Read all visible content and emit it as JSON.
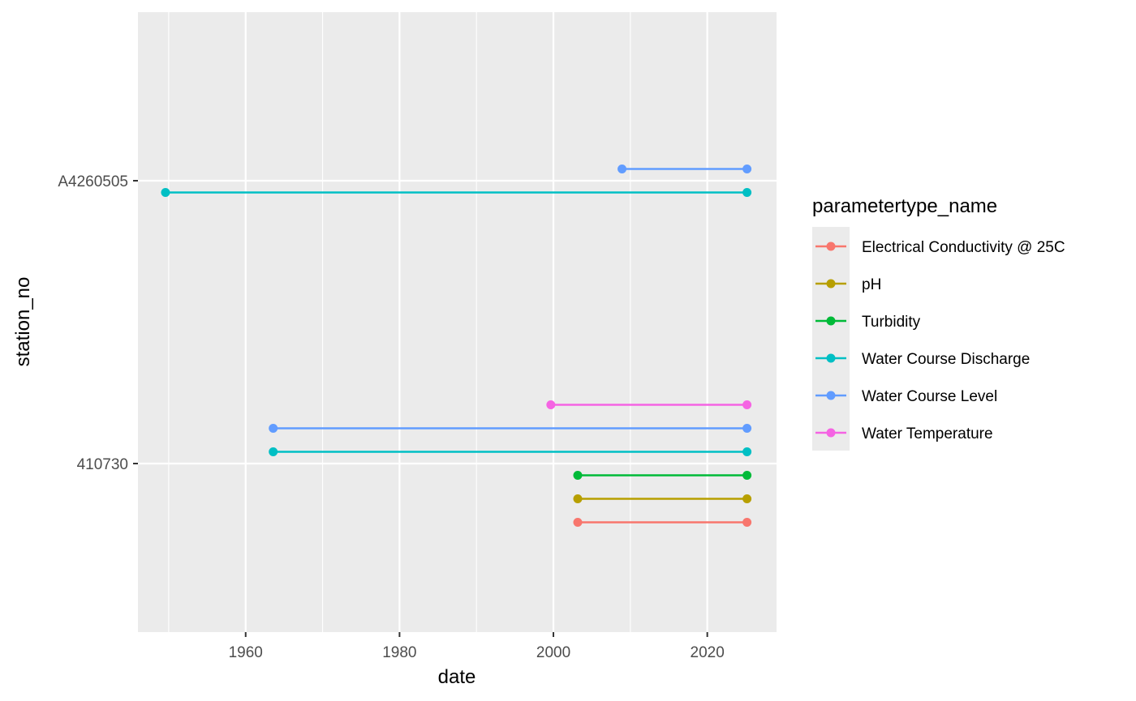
{
  "chart_data": {
    "type": "line",
    "title": "",
    "xlabel": "date",
    "ylabel": "station_no",
    "x_ticks": [
      "1960",
      "1980",
      "2000",
      "2020"
    ],
    "y_ticks": [
      "410730",
      "A4260505"
    ],
    "xlim": [
      "1946-01-01",
      "2029-01-01"
    ],
    "grid": true,
    "legend_position": "right",
    "legend_title": "parametertype_name",
    "series": [
      {
        "name": "Electrical Conductivity @ 25C",
        "color": "#F8766D",
        "segments": [
          {
            "station": "410730",
            "start": "2003-03-01",
            "end": "2025-03-01"
          }
        ]
      },
      {
        "name": "pH",
        "color": "#B79F00",
        "segments": [
          {
            "station": "410730",
            "start": "2003-03-01",
            "end": "2025-03-01"
          }
        ]
      },
      {
        "name": "Turbidity",
        "color": "#00BA38",
        "segments": [
          {
            "station": "410730",
            "start": "2003-03-01",
            "end": "2025-03-01"
          }
        ]
      },
      {
        "name": "Water Course Discharge",
        "color": "#00BFC4",
        "segments": [
          {
            "station": "410730",
            "start": "1963-08-01",
            "end": "2025-03-01"
          },
          {
            "station": "A4260505",
            "start": "1949-08-01",
            "end": "2025-03-01"
          }
        ]
      },
      {
        "name": "Water Course Level",
        "color": "#619CFF",
        "segments": [
          {
            "station": "410730",
            "start": "1963-08-01",
            "end": "2025-03-01"
          },
          {
            "station": "A4260505",
            "start": "2008-12-01",
            "end": "2025-03-01"
          }
        ]
      },
      {
        "name": "Water Temperature",
        "color": "#F564E3",
        "segments": [
          {
            "station": "410730",
            "start": "1999-09-01",
            "end": "2025-03-01"
          }
        ]
      }
    ]
  }
}
